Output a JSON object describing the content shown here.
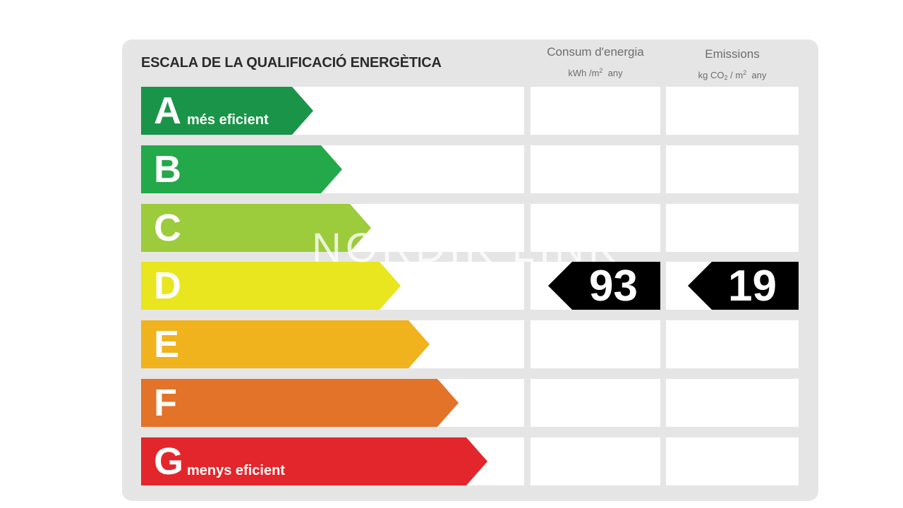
{
  "title": "ESCALA DE LA QUALIFICACIÓ ENERGÈTICA",
  "columns": {
    "energy": {
      "label": "Consum d'energia",
      "unit_prefix": "kWh /m",
      "unit_exp": "2",
      "unit_suffix": "any"
    },
    "emissions": {
      "label": "Emissions",
      "unit_prefix": "kg CO",
      "unit_sub": "2",
      "unit_mid": " / m",
      "unit_exp": "2",
      "unit_suffix": "any"
    }
  },
  "classes": [
    {
      "letter": "A",
      "tag": "més eficient",
      "color": "#1a9448"
    },
    {
      "letter": "B",
      "tag": "",
      "color": "#23a84a"
    },
    {
      "letter": "C",
      "tag": "",
      "color": "#9ccb3b"
    },
    {
      "letter": "D",
      "tag": "",
      "color": "#e9e51f"
    },
    {
      "letter": "E",
      "tag": "",
      "color": "#f0b21d"
    },
    {
      "letter": "F",
      "tag": "",
      "color": "#e27329"
    },
    {
      "letter": "G",
      "tag": "menys eficient",
      "color": "#e3262b"
    }
  ],
  "rating": {
    "class": "D",
    "energy_value": "93",
    "emissions_value": "19",
    "marker_color": "#000000"
  },
  "watermark": "NORDIK LINK"
}
